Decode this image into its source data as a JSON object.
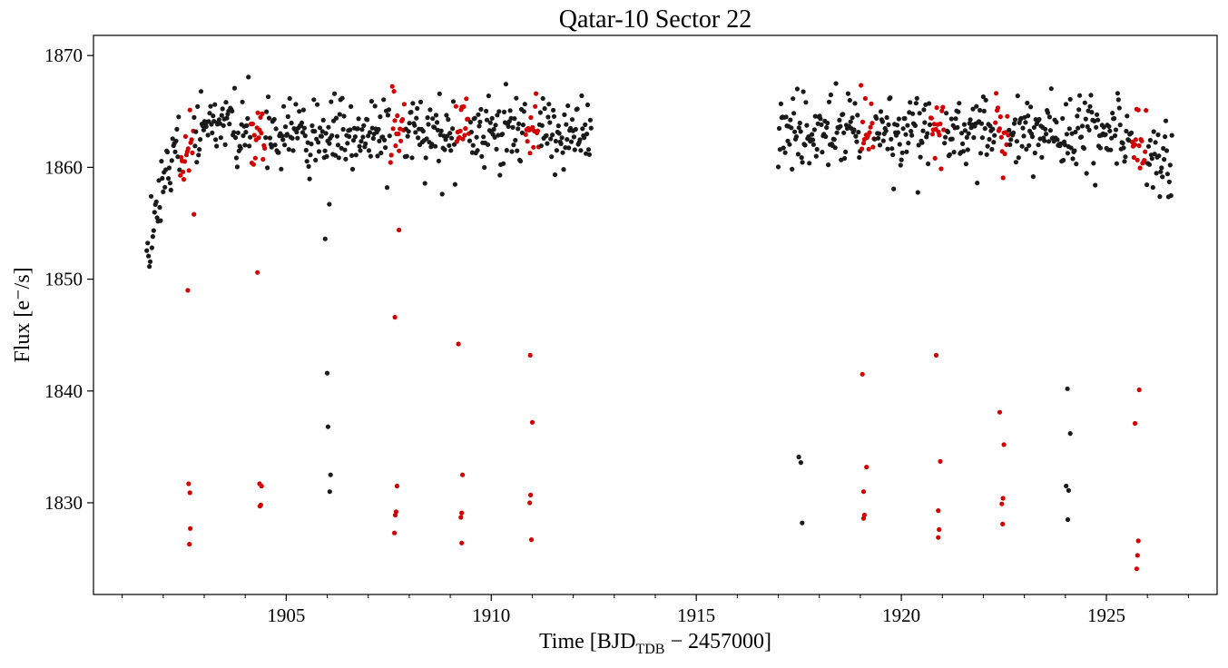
{
  "chart_data": {
    "type": "scatter",
    "title": "Qatar-10 Sector 22",
    "xlabel_main": "Time [BJD",
    "xlabel_sub": "TDB",
    "xlabel_rest": " − 2457000]",
    "ylabel": "Flux [e⁻/s]",
    "xlim": [
      1900.3,
      1927.7
    ],
    "ylim": [
      1821.8,
      1871.8
    ],
    "x_ticks": [
      1905,
      1910,
      1915,
      1920,
      1925
    ],
    "x_tick_labels": [
      "1905",
      "1910",
      "1915",
      "1920",
      "1925"
    ],
    "x_minor_step": 1,
    "y_ticks": [
      1830,
      1840,
      1850,
      1860,
      1870
    ],
    "y_tick_labels": [
      "1830",
      "1840",
      "1850",
      "1860",
      "1870"
    ],
    "grid": false,
    "colors": {
      "out_of_transit": "#1a1a1a",
      "in_transit": "#d40000"
    },
    "transit_centers": [
      1902.58,
      1904.31,
      1907.71,
      1909.3,
      1910.99,
      1919.17,
      1920.88,
      1922.45,
      1925.8
    ],
    "segments": [
      [
        1901.6,
        1912.45
      ],
      [
        1917.0,
        1926.6
      ]
    ],
    "outliers_black": [
      [
        1905.95,
        1853.6
      ],
      [
        1906.05,
        1856.7
      ],
      [
        1906.0,
        1841.6
      ],
      [
        1906.02,
        1836.8
      ],
      [
        1906.08,
        1832.5
      ],
      [
        1906.06,
        1831.0
      ],
      [
        1917.5,
        1834.1
      ],
      [
        1917.55,
        1833.6
      ],
      [
        1917.58,
        1828.2
      ],
      [
        1924.05,
        1840.2
      ],
      [
        1924.12,
        1836.2
      ],
      [
        1924.02,
        1831.5
      ],
      [
        1924.08,
        1831.1
      ],
      [
        1924.06,
        1828.5
      ]
    ],
    "outliers_red": [
      [
        1902.6,
        1849.0
      ],
      [
        1902.62,
        1831.7
      ],
      [
        1902.65,
        1830.9
      ],
      [
        1902.66,
        1827.7
      ],
      [
        1902.64,
        1826.3
      ],
      [
        1902.75,
        1855.8
      ],
      [
        1904.3,
        1850.6
      ],
      [
        1904.35,
        1831.7
      ],
      [
        1904.4,
        1831.5
      ],
      [
        1904.38,
        1829.8
      ],
      [
        1904.36,
        1829.7
      ],
      [
        1907.65,
        1846.6
      ],
      [
        1907.7,
        1831.5
      ],
      [
        1907.68,
        1829.2
      ],
      [
        1907.66,
        1828.9
      ],
      [
        1907.64,
        1827.3
      ],
      [
        1907.75,
        1854.4
      ],
      [
        1909.2,
        1844.2
      ],
      [
        1909.3,
        1832.5
      ],
      [
        1909.28,
        1829.1
      ],
      [
        1909.26,
        1828.7
      ],
      [
        1909.28,
        1826.4
      ],
      [
        1910.95,
        1843.2
      ],
      [
        1911.0,
        1837.2
      ],
      [
        1910.96,
        1830.7
      ],
      [
        1910.94,
        1830.0
      ],
      [
        1910.98,
        1826.7
      ],
      [
        1919.05,
        1841.5
      ],
      [
        1919.15,
        1833.2
      ],
      [
        1919.08,
        1831.0
      ],
      [
        1919.1,
        1828.9
      ],
      [
        1919.08,
        1828.6
      ],
      [
        1920.85,
        1843.2
      ],
      [
        1920.95,
        1833.7
      ],
      [
        1920.9,
        1829.3
      ],
      [
        1920.92,
        1827.6
      ],
      [
        1920.9,
        1826.9
      ],
      [
        1922.4,
        1838.1
      ],
      [
        1922.5,
        1835.2
      ],
      [
        1922.48,
        1830.4
      ],
      [
        1922.45,
        1829.9
      ],
      [
        1922.47,
        1828.1
      ],
      [
        1925.7,
        1837.1
      ],
      [
        1925.8,
        1840.1
      ],
      [
        1925.78,
        1826.6
      ],
      [
        1925.76,
        1825.3
      ],
      [
        1925.74,
        1824.1
      ]
    ]
  }
}
